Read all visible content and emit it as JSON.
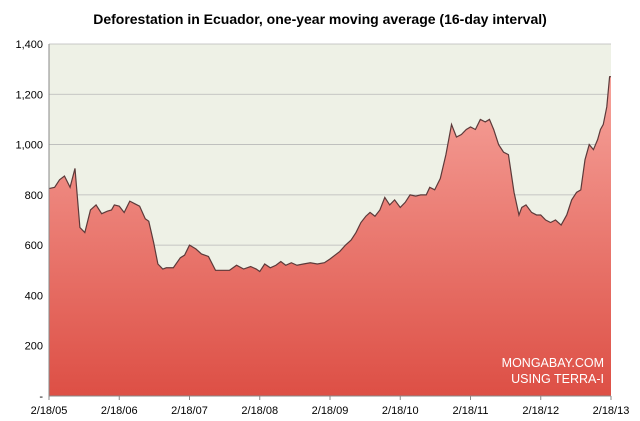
{
  "chart_data": {
    "type": "area",
    "title": "Deforestation in Ecuador, one-year moving average (16-day interval)",
    "xlabel": "",
    "ylabel": "",
    "ylim": [
      0,
      1400
    ],
    "yticks": [
      0,
      200,
      400,
      600,
      800,
      1000,
      1200,
      1400
    ],
    "ytick_labels": [
      "-",
      "200",
      "400",
      "600",
      "800",
      "1,000",
      "1,200",
      "1,400"
    ],
    "xlim": [
      2005.13,
      2013.13
    ],
    "xticks": [
      2005.13,
      2006.13,
      2007.13,
      2008.13,
      2009.13,
      2010.13,
      2011.13,
      2012.13,
      2013.13
    ],
    "xtick_labels": [
      "2/18/05",
      "2/18/06",
      "2/18/07",
      "2/18/08",
      "2/18/09",
      "2/18/10",
      "2/18/11",
      "2/18/12",
      "2/18/13"
    ],
    "watermark": [
      "MONGABAY.COM",
      "USING TERRA-I"
    ],
    "colors": {
      "plot_bg": "#eef1e6",
      "fill_top": "#f6a39b",
      "fill_bottom": "#dd4f45",
      "line": "#5c3a3a",
      "grid": "#b8b8b8"
    },
    "series": [
      {
        "name": "Deforestation (one-year moving average)",
        "x": [
          2005.13,
          2005.21,
          2005.28,
          2005.35,
          2005.43,
          2005.5,
          2005.57,
          2005.64,
          2005.72,
          2005.8,
          2005.88,
          2005.96,
          2006.02,
          2006.06,
          2006.13,
          2006.2,
          2006.28,
          2006.35,
          2006.42,
          2006.5,
          2006.55,
          2006.62,
          2006.68,
          2006.75,
          2006.8,
          2006.9,
          2007.0,
          2007.06,
          2007.13,
          2007.22,
          2007.3,
          2007.4,
          2007.5,
          2007.6,
          2007.7,
          2007.8,
          2007.9,
          2008.0,
          2008.08,
          2008.13,
          2008.2,
          2008.28,
          2008.36,
          2008.43,
          2008.5,
          2008.58,
          2008.66,
          2008.75,
          2008.85,
          2008.95,
          2009.05,
          2009.13,
          2009.2,
          2009.27,
          2009.35,
          2009.43,
          2009.5,
          2009.57,
          2009.64,
          2009.7,
          2009.77,
          2009.84,
          2009.91,
          2009.98,
          2010.05,
          2010.13,
          2010.2,
          2010.27,
          2010.35,
          2010.42,
          2010.5,
          2010.55,
          2010.62,
          2010.7,
          2010.78,
          2010.86,
          2010.93,
          2011.0,
          2011.07,
          2011.13,
          2011.2,
          2011.27,
          2011.34,
          2011.4,
          2011.46,
          2011.53,
          2011.6,
          2011.67,
          2011.75,
          2011.82,
          2011.86,
          2011.92,
          2012.0,
          2012.07,
          2012.13,
          2012.2,
          2012.27,
          2012.34,
          2012.42,
          2012.5,
          2012.57,
          2012.64,
          2012.7,
          2012.76,
          2012.82,
          2012.88,
          2012.94,
          2012.98,
          2013.02,
          2013.07,
          2013.11,
          2013.13
        ],
        "values": [
          825,
          830,
          860,
          875,
          830,
          905,
          670,
          650,
          740,
          760,
          725,
          735,
          740,
          760,
          755,
          730,
          775,
          765,
          755,
          705,
          695,
          610,
          525,
          505,
          510,
          510,
          550,
          560,
          600,
          585,
          565,
          555,
          500,
          500,
          500,
          520,
          505,
          515,
          505,
          495,
          525,
          510,
          520,
          535,
          520,
          530,
          520,
          525,
          530,
          525,
          530,
          545,
          560,
          575,
          600,
          620,
          650,
          690,
          715,
          730,
          715,
          740,
          790,
          760,
          780,
          750,
          770,
          800,
          795,
          800,
          800,
          830,
          820,
          865,
          960,
          1080,
          1030,
          1040,
          1060,
          1070,
          1060,
          1100,
          1090,
          1100,
          1060,
          1000,
          970,
          960,
          810,
          720,
          750,
          760,
          730,
          720,
          720,
          700,
          690,
          700,
          680,
          720,
          780,
          810,
          820,
          940,
          1000,
          980,
          1020,
          1060,
          1080,
          1150,
          1270,
          1270
        ]
      }
    ]
  }
}
